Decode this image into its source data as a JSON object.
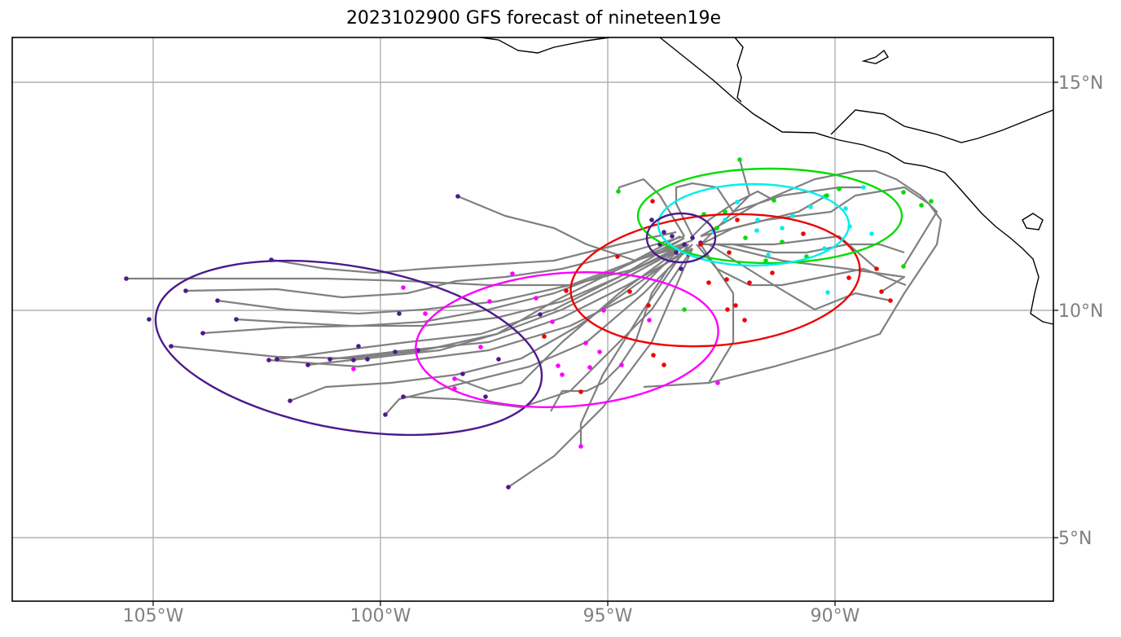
{
  "title": "2023102900 GFS forecast of nineteen19e",
  "map": {
    "lon_range": [
      -108.1,
      -85.2
    ],
    "lat_range": [
      3.6,
      16.0
    ],
    "lon_ticks": [
      {
        "value": -105,
        "label": "105°W"
      },
      {
        "value": -100,
        "label": "100°W"
      },
      {
        "value": -95,
        "label": "95°W"
      },
      {
        "value": -90,
        "label": "90°W"
      }
    ],
    "lat_ticks": [
      {
        "value": 15,
        "label": "15°N"
      },
      {
        "value": 10,
        "label": "10°N"
      },
      {
        "value": 5,
        "label": "5°N"
      }
    ],
    "gridlines": true,
    "colors": {
      "track": "#808080",
      "grid": "#b0b0b0",
      "coast": "#000000",
      "tick_label": "#808080",
      "ellipse_purple": "#4b1a8c",
      "ellipse_magenta": "#ff00ff",
      "ellipse_red": "#ee0000",
      "ellipse_green": "#00dd00",
      "ellipse_cyan": "#00eeee"
    }
  }
}
